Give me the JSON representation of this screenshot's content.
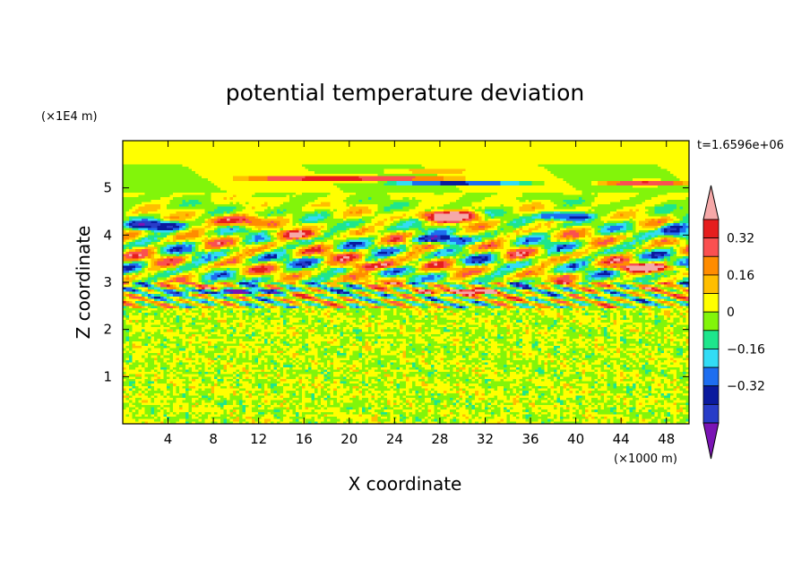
{
  "chart_data": {
    "type": "heatmap",
    "title": "potential temperature deviation",
    "xlabel": "X coordinate",
    "ylabel": "Z coordinate",
    "x_unit": "(×1000 m)",
    "y_unit": "(×1E4 m)",
    "time_label": "t=1.6596e+06",
    "xlim": [
      0,
      50
    ],
    "ylim": [
      0,
      6
    ],
    "x_ticks": [
      4,
      8,
      12,
      16,
      20,
      24,
      28,
      32,
      36,
      40,
      44,
      48
    ],
    "y_ticks": [
      1,
      2,
      3,
      4,
      5
    ],
    "legend": {
      "levels": [
        -0.48,
        -0.4,
        -0.32,
        -0.24,
        -0.16,
        -0.08,
        0,
        0.08,
        0.16,
        0.24,
        0.32,
        0.4
      ],
      "labels": [
        "0.32",
        "0.16",
        "0",
        "−0.16",
        "−0.32"
      ],
      "colors": [
        "#7a14b4",
        "#283cc8",
        "#0a1a9e",
        "#1e6ef0",
        "#32dcf5",
        "#1ee68c",
        "#82f50a",
        "#ffff00",
        "#ffbe00",
        "#ff8c00",
        "#fa5050",
        "#e61e1e",
        "#f5a8a8"
      ]
    },
    "features": [
      {
        "x": 20,
        "z": 5.2,
        "dx": 12,
        "dz": 0.08,
        "value": 0.35
      },
      {
        "x": 46,
        "z": 5.1,
        "dx": 5,
        "dz": 0.08,
        "value": 0.35
      },
      {
        "x": 30,
        "z": 5.1,
        "dx": 8,
        "dz": 0.07,
        "value": -0.35
      },
      {
        "x": 27,
        "z": 5.35,
        "dx": 5,
        "dz": 0.06,
        "value": 0.12
      },
      {
        "x": 29,
        "z": 4.4,
        "dx": 3.5,
        "dz": 0.15,
        "value": 0.45
      },
      {
        "x": 39,
        "z": 4.4,
        "dx": 3,
        "dz": 0.12,
        "value": -0.36
      },
      {
        "x": 10,
        "z": 4.3,
        "dx": 3,
        "dz": 0.15,
        "value": 0.3
      },
      {
        "x": 28,
        "z": 3.9,
        "dx": 3.5,
        "dz": 0.12,
        "value": -0.36
      },
      {
        "x": 3,
        "z": 4.2,
        "dx": 3,
        "dz": 0.15,
        "value": -0.36
      },
      {
        "x": 49,
        "z": 4.1,
        "dx": 2,
        "dz": 0.2,
        "value": -0.36
      },
      {
        "x": 15,
        "z": 4.0,
        "dx": 3,
        "dz": 0.12,
        "value": 0.3
      },
      {
        "x": 10,
        "z": 2.8,
        "dx": 6,
        "dz": 0.08,
        "value": -0.45
      },
      {
        "x": 30,
        "z": 2.8,
        "dx": 5,
        "dz": 0.08,
        "value": 0.35
      },
      {
        "x": 22,
        "z": 3.35,
        "dx": 4,
        "dz": 0.1,
        "value": 0.3
      },
      {
        "x": 46,
        "z": 3.3,
        "dx": 4,
        "dz": 0.1,
        "value": 0.35
      }
    ]
  }
}
